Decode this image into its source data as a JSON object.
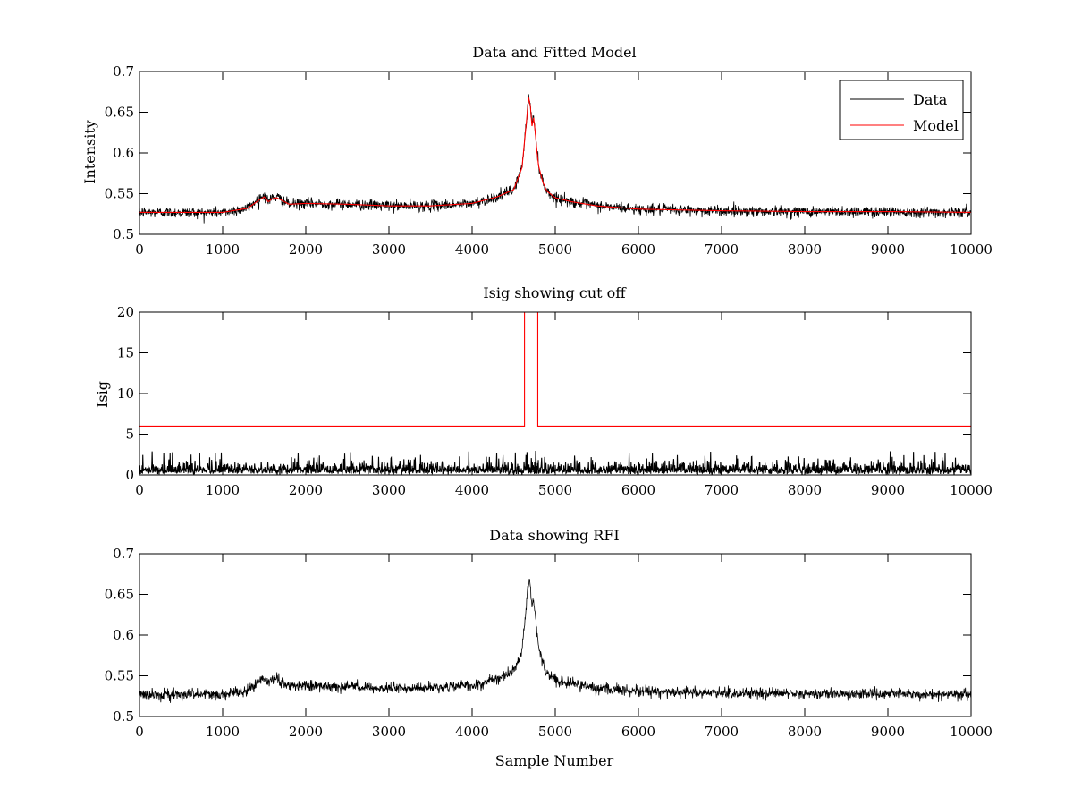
{
  "colors": {
    "data": "#000000",
    "model": "#ff0000",
    "background": "#ffffff",
    "axes": "#000000"
  },
  "chart_data": [
    {
      "type": "line",
      "title": "Data and Fitted Model",
      "xlabel": "",
      "ylabel": "Intensity",
      "xlim": [
        0,
        10000
      ],
      "ylim": [
        0.5,
        0.7
      ],
      "xticks": [
        "0",
        "1000",
        "2000",
        "3000",
        "4000",
        "5000",
        "6000",
        "7000",
        "8000",
        "9000",
        "10000"
      ],
      "yticks": [
        "0.5",
        "0.55",
        "0.6",
        "0.65",
        "0.7"
      ],
      "grid": false,
      "legend": {
        "placement": "top-right",
        "entries": [
          "Data",
          "Model"
        ]
      },
      "series": [
        {
          "name": "Data",
          "color": "#000000",
          "noise": 0.006,
          "x": [
            0,
            1000,
            1300,
            1450,
            1500,
            1550,
            1600,
            1650,
            1800,
            2000,
            2500,
            3000,
            3500,
            4000,
            4300,
            4500,
            4600,
            4650,
            4680,
            4700,
            4720,
            4740,
            4760,
            4780,
            4800,
            4850,
            4900,
            5000,
            5200,
            5500,
            6000,
            7000,
            8000,
            9000,
            10000
          ],
          "y": [
            0.527,
            0.527,
            0.532,
            0.545,
            0.548,
            0.541,
            0.545,
            0.546,
            0.537,
            0.538,
            0.537,
            0.535,
            0.535,
            0.538,
            0.546,
            0.555,
            0.582,
            0.635,
            0.67,
            0.66,
            0.635,
            0.645,
            0.625,
            0.603,
            0.585,
            0.565,
            0.553,
            0.545,
            0.54,
            0.535,
            0.531,
            0.529,
            0.528,
            0.528,
            0.527
          ]
        },
        {
          "name": "Model",
          "color": "#ff0000",
          "noise": 0,
          "x": [
            0,
            1000,
            1300,
            1450,
            1500,
            1550,
            1600,
            1650,
            1800,
            2000,
            2500,
            3000,
            3500,
            4000,
            4300,
            4500,
            4600,
            4650,
            4680,
            4700,
            4720,
            4740,
            4760,
            4780,
            4800,
            4850,
            4900,
            5000,
            5200,
            5500,
            6000,
            7000,
            8000,
            9000,
            10000
          ],
          "y": [
            0.527,
            0.527,
            0.532,
            0.543,
            0.546,
            0.54,
            0.544,
            0.545,
            0.537,
            0.538,
            0.537,
            0.535,
            0.535,
            0.538,
            0.546,
            0.555,
            0.582,
            0.635,
            0.668,
            0.658,
            0.633,
            0.643,
            0.624,
            0.602,
            0.584,
            0.564,
            0.553,
            0.545,
            0.54,
            0.535,
            0.531,
            0.529,
            0.528,
            0.528,
            0.527
          ]
        }
      ]
    },
    {
      "type": "line",
      "title": "Isig showing cut off",
      "xlabel": "",
      "ylabel": "Isig",
      "xlim": [
        0,
        10000
      ],
      "ylim": [
        0,
        20
      ],
      "xticks": [
        "0",
        "1000",
        "2000",
        "3000",
        "4000",
        "5000",
        "6000",
        "7000",
        "8000",
        "9000",
        "10000"
      ],
      "yticks": [
        "0",
        "5",
        "10",
        "15",
        "20"
      ],
      "grid": false,
      "series": [
        {
          "color": "#000000",
          "noise_abs_max": 3.0,
          "x": [
            0,
            10000
          ],
          "y": [
            0.8,
            0.8
          ]
        },
        {
          "color": "#ff0000",
          "noise": 0,
          "x": [
            0,
            4630,
            4630,
            4790,
            4790,
            10000
          ],
          "y": [
            6,
            6,
            20,
            20,
            6,
            6
          ]
        }
      ]
    },
    {
      "type": "line",
      "title": "Data showing RFI",
      "xlabel": "Sample Number",
      "ylabel": "",
      "xlim": [
        0,
        10000
      ],
      "ylim": [
        0.5,
        0.7
      ],
      "xticks": [
        "0",
        "1000",
        "2000",
        "3000",
        "4000",
        "5000",
        "6000",
        "7000",
        "8000",
        "9000",
        "10000"
      ],
      "yticks": [
        "0.5",
        "0.55",
        "0.6",
        "0.65",
        "0.7"
      ],
      "grid": false,
      "series": [
        {
          "color": "#000000",
          "noise": 0.006,
          "x": [
            0,
            1000,
            1300,
            1450,
            1500,
            1550,
            1600,
            1650,
            1800,
            2000,
            2500,
            3000,
            3500,
            4000,
            4300,
            4500,
            4600,
            4650,
            4680,
            4700,
            4720,
            4740,
            4760,
            4780,
            4800,
            4850,
            4900,
            5000,
            5200,
            5500,
            6000,
            7000,
            8000,
            9000,
            10000
          ],
          "y": [
            0.527,
            0.527,
            0.532,
            0.545,
            0.548,
            0.541,
            0.545,
            0.546,
            0.537,
            0.538,
            0.537,
            0.535,
            0.535,
            0.538,
            0.546,
            0.555,
            0.582,
            0.635,
            0.67,
            0.66,
            0.635,
            0.645,
            0.625,
            0.603,
            0.585,
            0.565,
            0.553,
            0.545,
            0.54,
            0.535,
            0.531,
            0.529,
            0.528,
            0.528,
            0.527
          ]
        }
      ]
    }
  ]
}
